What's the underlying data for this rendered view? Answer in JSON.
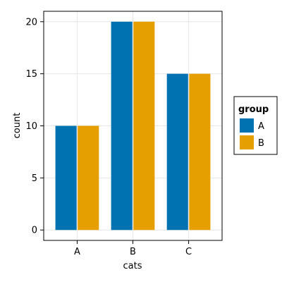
{
  "chart_data": {
    "type": "bar",
    "categories": [
      "A",
      "B",
      "C"
    ],
    "series": [
      {
        "name": "A",
        "values": [
          10,
          20,
          15
        ],
        "color": "#0072B2"
      },
      {
        "name": "B",
        "values": [
          10,
          20,
          15
        ],
        "color": "#E69F00"
      }
    ],
    "title": "",
    "xlabel": "cats",
    "ylabel": "count",
    "ylim": [
      -1,
      21
    ],
    "yticks": [
      0,
      5,
      10,
      15,
      20
    ],
    "grid": true,
    "legend": {
      "title": "group",
      "placement": "right"
    }
  }
}
